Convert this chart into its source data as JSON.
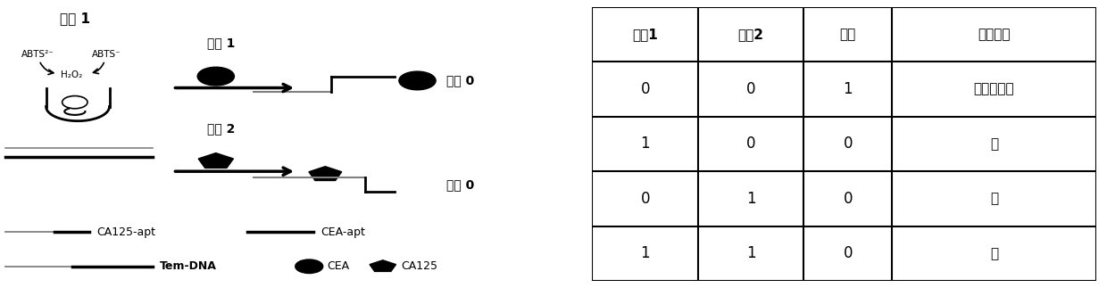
{
  "table_headers": [
    "输八1",
    "输八2",
    "输出",
    "诊断结果"
  ],
  "table_rows": [
    [
      "0",
      "0",
      "1",
      "排除卵巢癌"
    ],
    [
      "1",
      "0",
      "0",
      "无"
    ],
    [
      "0",
      "1",
      "0",
      "无"
    ],
    [
      "1",
      "1",
      "0",
      "无"
    ]
  ],
  "bg_color": "#ffffff",
  "table_line_color": "#000000",
  "text_color": "#000000",
  "label_input1": "输八 1",
  "label_input2": "输八 2",
  "label_output0": "输出 0",
  "label_abts2": "ABTS²⁻",
  "label_abts1": "ABTS⁻",
  "label_h2o2": "H₂O₂",
  "label_ca125apt": "CA125-apt",
  "label_ceaapt": "CEA-apt",
  "label_temdna": "Tem-DNA",
  "label_cea": "CEA",
  "label_ca125": "CA125"
}
